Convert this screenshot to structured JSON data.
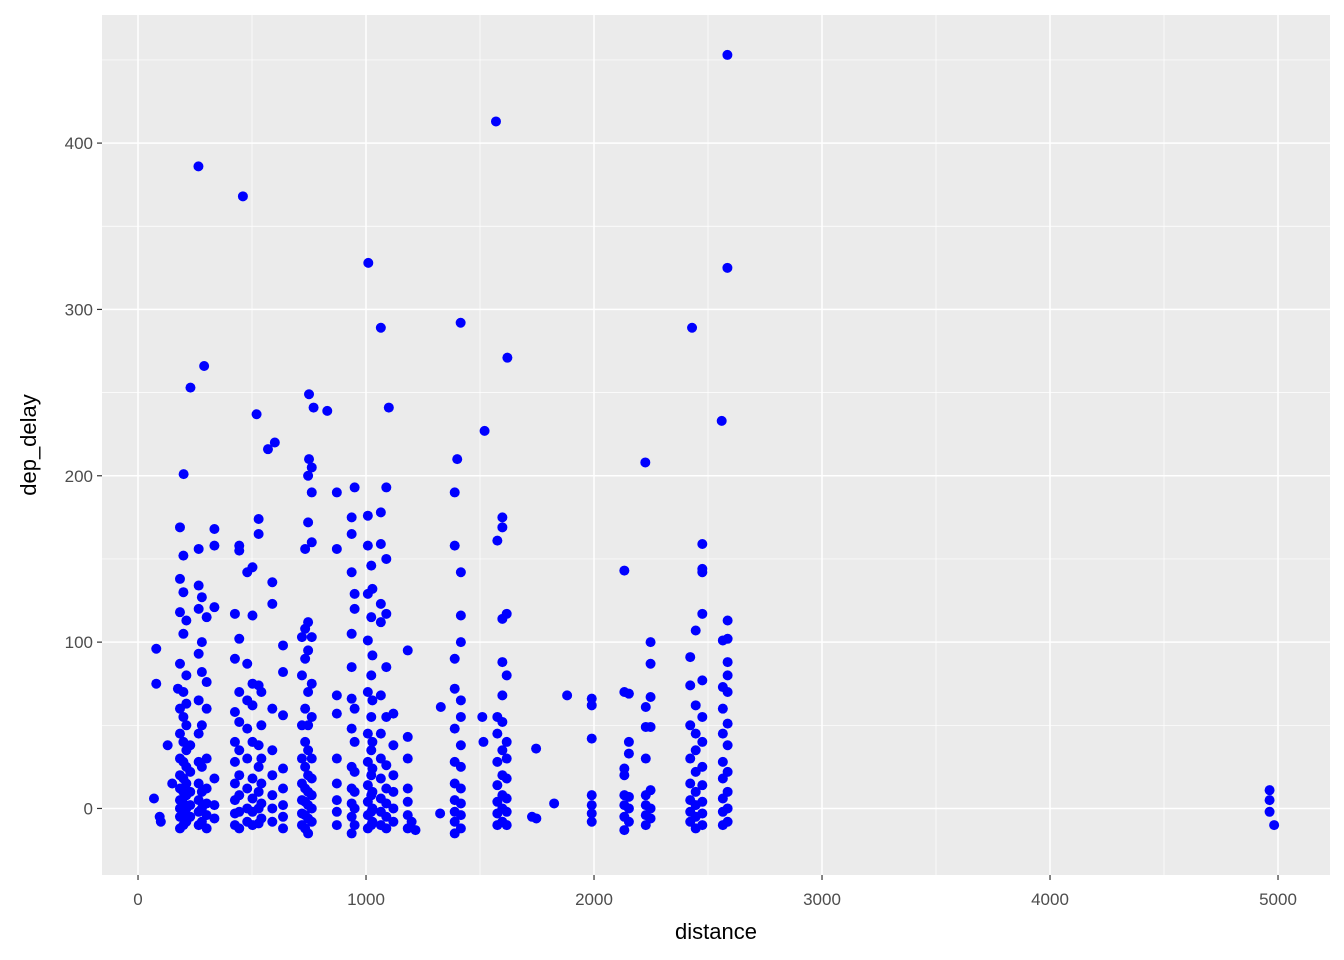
{
  "chart_data": {
    "type": "scatter",
    "title": "",
    "xlabel": "distance",
    "ylabel": "dep_delay",
    "xlim": [
      -158,
      5228
    ],
    "ylim": [
      -40,
      477
    ],
    "x_ticks": [
      0,
      1000,
      2000,
      3000,
      4000,
      5000
    ],
    "y_ticks": [
      0,
      100,
      200,
      300,
      400
    ],
    "x_tick_labels": [
      "0",
      "1000",
      "2000",
      "3000",
      "4000",
      "5000"
    ],
    "y_tick_labels": [
      "0",
      "100",
      "200",
      "300",
      "400"
    ],
    "grid": true,
    "point_color": "#0000FF",
    "panel_background": "#EBEBEB",
    "points": [
      [
        2585,
        453
      ],
      [
        1570,
        413
      ],
      [
        265,
        386
      ],
      [
        460,
        368
      ],
      [
        1010,
        328
      ],
      [
        2585,
        325
      ],
      [
        1415,
        292
      ],
      [
        1065,
        289
      ],
      [
        2430,
        289
      ],
      [
        1620,
        271
      ],
      [
        290,
        266
      ],
      [
        230,
        253
      ],
      [
        750,
        249
      ],
      [
        770,
        241
      ],
      [
        830,
        239
      ],
      [
        1100,
        241
      ],
      [
        520,
        237
      ],
      [
        2560,
        233
      ],
      [
        1520,
        227
      ],
      [
        600,
        220
      ],
      [
        570,
        216
      ],
      [
        1400,
        210
      ],
      [
        750,
        210
      ],
      [
        2225,
        208
      ],
      [
        200,
        201
      ],
      [
        1746,
        36
      ],
      [
        1825,
        3
      ],
      [
        1882,
        68
      ],
      [
        1325,
        -3
      ],
      [
        1328,
        61
      ],
      [
        1510,
        55
      ],
      [
        1515,
        40
      ],
      [
        1728,
        -5
      ],
      [
        1747,
        -6
      ],
      [
        80,
        96
      ],
      [
        80,
        75
      ],
      [
        70,
        6
      ],
      [
        95,
        -5
      ],
      [
        100,
        -8
      ],
      [
        130,
        38
      ],
      [
        150,
        15
      ],
      [
        175,
        72
      ],
      [
        1217,
        -13
      ],
      [
        1200,
        -8
      ]
    ],
    "columns": [
      {
        "distance": 184,
        "dep_delay": [
          -12,
          -5,
          0,
          5,
          12,
          20,
          30,
          45,
          60,
          87,
          118,
          138,
          169
        ]
      },
      {
        "distance": 199,
        "dep_delay": [
          -10,
          -3,
          3,
          10,
          18,
          28,
          40,
          55,
          70,
          105,
          130,
          152
        ]
      },
      {
        "distance": 212,
        "dep_delay": [
          -8,
          0,
          8,
          15,
          25,
          35,
          50,
          63,
          80,
          113
        ]
      },
      {
        "distance": 229,
        "dep_delay": [
          -5,
          2,
          10,
          22,
          38
        ]
      },
      {
        "distance": 266,
        "dep_delay": [
          -10,
          -2,
          5,
          15,
          28,
          45,
          65,
          93,
          120,
          134,
          156
        ]
      },
      {
        "distance": 280,
        "dep_delay": [
          -8,
          0,
          10,
          25,
          50,
          82,
          100,
          127
        ]
      },
      {
        "distance": 301,
        "dep_delay": [
          -12,
          -4,
          3,
          12,
          30,
          60,
          76,
          115
        ]
      },
      {
        "distance": 335,
        "dep_delay": [
          -6,
          2,
          18,
          121,
          168,
          158
        ]
      },
      {
        "distance": 425,
        "dep_delay": [
          -10,
          -3,
          5,
          15,
          28,
          40,
          58,
          90,
          117
        ]
      },
      {
        "distance": 444,
        "dep_delay": [
          -12,
          -2,
          8,
          20,
          35,
          52,
          70,
          102,
          155,
          158
        ]
      },
      {
        "distance": 479,
        "dep_delay": [
          -8,
          0,
          12,
          30,
          48,
          65,
          87,
          142
        ]
      },
      {
        "distance": 502,
        "dep_delay": [
          -10,
          -2,
          6,
          18,
          40,
          62,
          75,
          116,
          145
        ]
      },
      {
        "distance": 529,
        "dep_delay": [
          -9,
          0,
          10,
          25,
          38,
          74,
          165,
          174
        ]
      },
      {
        "distance": 541,
        "dep_delay": [
          -6,
          3,
          15,
          30,
          50,
          70
        ]
      },
      {
        "distance": 589,
        "dep_delay": [
          -8,
          0,
          8,
          20,
          35,
          60,
          123,
          136
        ]
      },
      {
        "distance": 636,
        "dep_delay": [
          -12,
          -5,
          2,
          12,
          24,
          56,
          82,
          98
        ]
      },
      {
        "distance": 719,
        "dep_delay": [
          -10,
          -3,
          5,
          15,
          30,
          50,
          80,
          103
        ]
      },
      {
        "distance": 733,
        "dep_delay": [
          -12,
          -4,
          4,
          12,
          25,
          40,
          60,
          90,
          108,
          156
        ]
      },
      {
        "distance": 746,
        "dep_delay": [
          -15,
          -6,
          2,
          10,
          20,
          35,
          50,
          70,
          95,
          112,
          200,
          172
        ]
      },
      {
        "distance": 762,
        "dep_delay": [
          -8,
          0,
          8,
          18,
          30,
          55,
          75,
          103,
          160,
          190,
          205
        ]
      },
      {
        "distance": 872,
        "dep_delay": [
          -10,
          -2,
          5,
          15,
          30,
          57,
          68,
          156,
          190
        ]
      },
      {
        "distance": 937,
        "dep_delay": [
          -15,
          -5,
          3,
          12,
          25,
          48,
          66,
          85,
          105,
          142,
          165,
          175
        ]
      },
      {
        "distance": 950,
        "dep_delay": [
          -10,
          0,
          10,
          22,
          40,
          60,
          120,
          129,
          193
        ]
      },
      {
        "distance": 1008,
        "dep_delay": [
          -12,
          -4,
          4,
          14,
          28,
          45,
          70,
          101,
          129,
          158,
          176
        ]
      },
      {
        "distance": 1023,
        "dep_delay": [
          -10,
          -2,
          8,
          20,
          35,
          55,
          80,
          115,
          146
        ]
      },
      {
        "distance": 1028,
        "dep_delay": [
          -8,
          0,
          10,
          24,
          40,
          65,
          92,
          132
        ]
      },
      {
        "distance": 1065,
        "dep_delay": [
          -10,
          -2,
          6,
          18,
          30,
          45,
          68,
          112,
          123,
          159,
          178
        ]
      },
      {
        "distance": 1089,
        "dep_delay": [
          -12,
          -5,
          3,
          12,
          26,
          55,
          85,
          117,
          150,
          193
        ]
      },
      {
        "distance": 1120,
        "dep_delay": [
          -8,
          0,
          10,
          20,
          38,
          57
        ]
      },
      {
        "distance": 1183,
        "dep_delay": [
          -12,
          -4,
          4,
          12,
          30,
          43,
          95
        ]
      },
      {
        "distance": 1389,
        "dep_delay": [
          -15,
          -8,
          -2,
          5,
          15,
          28,
          48,
          72,
          90,
          158,
          190
        ]
      },
      {
        "distance": 1416,
        "dep_delay": [
          -12,
          -4,
          3,
          12,
          25,
          38,
          55,
          65,
          100,
          116,
          142
        ]
      },
      {
        "distance": 1576,
        "dep_delay": [
          -10,
          -3,
          4,
          14,
          28,
          45,
          55,
          161
        ]
      },
      {
        "distance": 1598,
        "dep_delay": [
          -8,
          0,
          8,
          20,
          35,
          52,
          68,
          88,
          114,
          169,
          175
        ]
      },
      {
        "distance": 1617,
        "dep_delay": [
          -10,
          -2,
          6,
          18,
          30,
          40,
          80,
          117
        ]
      },
      {
        "distance": 1990,
        "dep_delay": [
          -8,
          -3,
          2,
          8,
          42,
          62,
          66
        ]
      },
      {
        "distance": 2133,
        "dep_delay": [
          -13,
          -5,
          2,
          8,
          20,
          24,
          70,
          143
        ]
      },
      {
        "distance": 2153,
        "dep_delay": [
          -8,
          0,
          7,
          33,
          40,
          69
        ]
      },
      {
        "distance": 2227,
        "dep_delay": [
          -10,
          -4,
          2,
          8,
          30,
          49,
          61
        ]
      },
      {
        "distance": 2248,
        "dep_delay": [
          -6,
          0,
          11,
          49,
          67,
          87,
          100
        ]
      },
      {
        "distance": 2422,
        "dep_delay": [
          -8,
          -2,
          5,
          15,
          30,
          50,
          74,
          91
        ]
      },
      {
        "distance": 2446,
        "dep_delay": [
          -12,
          -5,
          2,
          10,
          22,
          35,
          45,
          62,
          107
        ]
      },
      {
        "distance": 2475,
        "dep_delay": [
          -10,
          -3,
          4,
          14,
          25,
          40,
          55,
          77,
          117,
          142,
          144,
          159
        ]
      },
      {
        "distance": 2565,
        "dep_delay": [
          -10,
          -2,
          6,
          18,
          28,
          45,
          60,
          73,
          101
        ]
      },
      {
        "distance": 2586,
        "dep_delay": [
          -8,
          0,
          10,
          22,
          38,
          51,
          70,
          80,
          88,
          102,
          113
        ]
      },
      {
        "distance": 4963,
        "dep_delay": [
          -2,
          5,
          11
        ]
      },
      {
        "distance": 4983,
        "dep_delay": [
          -10
        ]
      }
    ]
  }
}
